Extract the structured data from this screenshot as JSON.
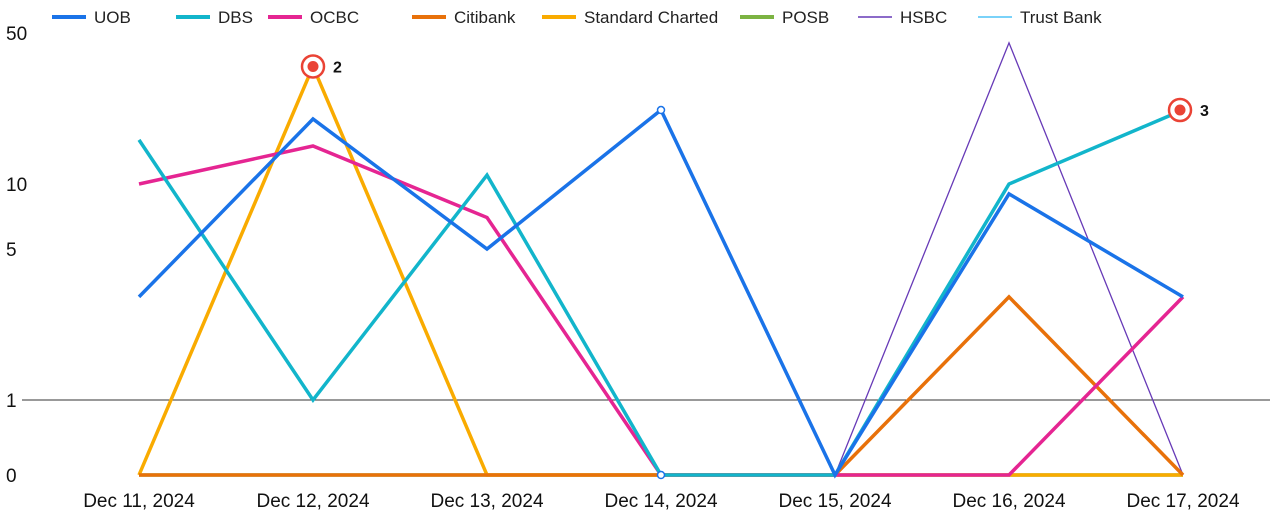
{
  "chart_data": {
    "type": "line",
    "title": "",
    "xlabel": "",
    "ylabel": "",
    "categories": [
      "Dec 11, 2024",
      "Dec 12, 2024",
      "Dec 13, 2024",
      "Dec 14, 2024",
      "Dec 15, 2024",
      "Dec 16, 2024",
      "Dec 17, 2024"
    ],
    "y_scale": "log-like",
    "y_ticks": [
      0,
      1,
      5,
      10,
      50
    ],
    "ylim": [
      0,
      50
    ],
    "legend_position": "top",
    "grid": false,
    "series": [
      {
        "name": "UOB",
        "color": "#1a73e8",
        "width": 3.5,
        "values": [
          3,
          20,
          5,
          22,
          0,
          9,
          3
        ]
      },
      {
        "name": "DBS",
        "color": "#12b5cb",
        "width": 3.5,
        "values": [
          16,
          1,
          11,
          0,
          0,
          10,
          22
        ]
      },
      {
        "name": "OCBC",
        "color": "#e52592",
        "width": 3.5,
        "values": [
          10,
          15,
          7,
          0,
          0,
          0,
          3
        ]
      },
      {
        "name": "Citibank",
        "color": "#e8710a",
        "width": 3.5,
        "values": [
          0,
          0,
          0,
          0,
          0,
          3,
          0
        ]
      },
      {
        "name": "Standard Charted",
        "color": "#f9ab00",
        "width": 3.5,
        "values": [
          0,
          35,
          0,
          0,
          0,
          0,
          0
        ]
      },
      {
        "name": "POSB",
        "color": "#7cb342",
        "width": 3.5,
        "values": [
          0,
          0,
          0,
          0,
          0,
          0,
          0
        ]
      },
      {
        "name": "HSBC",
        "color": "#673ab7",
        "width": 1.3,
        "values": [
          0,
          0,
          0,
          0,
          0,
          45,
          0
        ]
      },
      {
        "name": "Trust Bank",
        "color": "#4fc3f7",
        "width": 1.3,
        "values": [
          0,
          0,
          0,
          0,
          0,
          0,
          0
        ]
      }
    ],
    "annotations": [
      {
        "label": "2",
        "category": "Dec 12, 2024",
        "value": 35
      },
      {
        "label": "3",
        "category": "Dec 17, 2024",
        "value": 22
      }
    ]
  }
}
